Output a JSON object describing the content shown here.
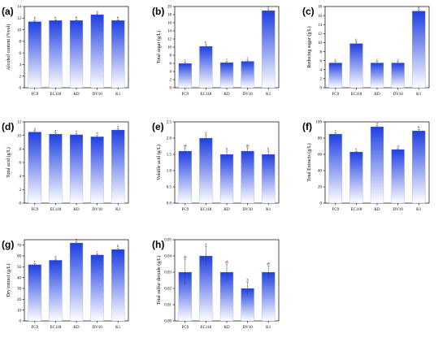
{
  "chart_data": [
    {
      "panel": "(a)",
      "type": "bar",
      "categories": [
        "FC9",
        "EC118",
        "KD",
        "DV10",
        "K1"
      ],
      "values": [
        11.4,
        11.6,
        11.6,
        12.6,
        11.6
      ],
      "errors": [
        0.2,
        0.1,
        0.1,
        0.15,
        0.1
      ],
      "letters": [
        "b",
        "b",
        "b",
        "a",
        "b"
      ],
      "ylabel": "Alcohol content (%vol)",
      "ylim": [
        0,
        14
      ],
      "yticks": [
        0,
        2,
        4,
        6,
        8,
        10,
        12,
        14
      ]
    },
    {
      "panel": "(b)",
      "type": "bar",
      "categories": [
        "FC9",
        "EC118",
        "KD",
        "DV10",
        "K1"
      ],
      "values": [
        6.0,
        10.2,
        6.2,
        6.5,
        19.0
      ],
      "errors": [
        0.3,
        0.4,
        0.3,
        0.3,
        0.4
      ],
      "letters": [
        "c",
        "b",
        "c",
        "c",
        "a"
      ],
      "ylabel": "Total sugar (g/L)",
      "ylim": [
        0,
        20
      ],
      "yticks": [
        0,
        2,
        4,
        6,
        8,
        10,
        12,
        14,
        16,
        18,
        20
      ]
    },
    {
      "panel": "(c)",
      "type": "bar",
      "categories": [
        "FC9",
        "EC118",
        "KD",
        "DV10",
        "K1"
      ],
      "values": [
        5.5,
        9.8,
        5.5,
        5.5,
        17.0
      ],
      "errors": [
        0.3,
        0.3,
        0.3,
        0.3,
        0.3
      ],
      "letters": [
        "c",
        "b",
        "c",
        "c",
        "a"
      ],
      "ylabel": "Reducing sugar (g/L)",
      "ylim": [
        0,
        18
      ],
      "yticks": [
        0,
        2,
        4,
        6,
        8,
        10,
        12,
        14,
        16,
        18
      ]
    },
    {
      "panel": "(d)",
      "type": "bar",
      "categories": [
        "FC9",
        "EC118",
        "KD",
        "DV10",
        "K1"
      ],
      "values": [
        10.5,
        10.2,
        10.1,
        9.8,
        10.8
      ],
      "errors": [
        0.2,
        0.2,
        0.2,
        0.2,
        0.2
      ],
      "letters": [
        "a",
        "a",
        "a",
        "a",
        "a"
      ],
      "ylabel": "Total acid (g/L)",
      "ylim": [
        0,
        12
      ],
      "yticks": [
        0,
        2,
        4,
        6,
        8,
        10,
        12
      ]
    },
    {
      "panel": "(e)",
      "type": "bar",
      "categories": [
        "FC9",
        "EC118",
        "KD",
        "DV10",
        "K1"
      ],
      "values": [
        1.6,
        2.0,
        1.5,
        1.6,
        1.5
      ],
      "errors": [
        0.1,
        0.1,
        0.1,
        0.1,
        0.1
      ],
      "letters": [
        "ab",
        "a",
        "b",
        "ab",
        "b"
      ],
      "ylabel": "Volatile acid (g/L)",
      "ylim": [
        0,
        2.5
      ],
      "yticks": [
        0.0,
        0.5,
        1.0,
        1.5,
        2.0,
        2.5
      ]
    },
    {
      "panel": "(f)",
      "type": "bar",
      "categories": [
        "FC9",
        "EC118",
        "KD",
        "DV10",
        "K1"
      ],
      "values": [
        85,
        63,
        94,
        66,
        89
      ],
      "errors": [
        1.5,
        1.0,
        1.5,
        1.0,
        1.5
      ],
      "letters": [
        "c",
        "e",
        "a",
        "d",
        "b"
      ],
      "ylabel": "Total Extracts (g/L)",
      "ylim": [
        0,
        100
      ],
      "yticks": [
        0,
        20,
        40,
        60,
        80,
        100
      ]
    },
    {
      "panel": "(g)",
      "type": "bar",
      "categories": [
        "FC9",
        "EC118",
        "KD",
        "DV10",
        "K1"
      ],
      "values": [
        52,
        56,
        72,
        61,
        66
      ],
      "errors": [
        1.0,
        1.0,
        1.0,
        1.0,
        1.0
      ],
      "letters": [
        "e",
        "d",
        "a",
        "c",
        "b"
      ],
      "ylabel": "Dry extract (g/L)",
      "ylim": [
        0,
        75
      ],
      "yticks": [
        0,
        10,
        20,
        30,
        40,
        50,
        60,
        70
      ]
    },
    {
      "panel": "(h)",
      "type": "bar",
      "categories": [
        "FC9",
        "EC118",
        "KD",
        "DV10",
        "K1"
      ],
      "values": [
        0.03,
        0.04,
        0.03,
        0.02,
        0.03
      ],
      "errors": [
        0.008,
        0.006,
        0.005,
        0.004,
        0.004
      ],
      "letters": [
        "ab",
        "a",
        "ab",
        "b",
        "ab"
      ],
      "ylabel": "Total sulfur dioxide (g/L)",
      "ylim": [
        0,
        0.05
      ],
      "yticks": [
        0.0,
        0.01,
        0.02,
        0.03,
        0.04,
        0.05
      ]
    }
  ]
}
